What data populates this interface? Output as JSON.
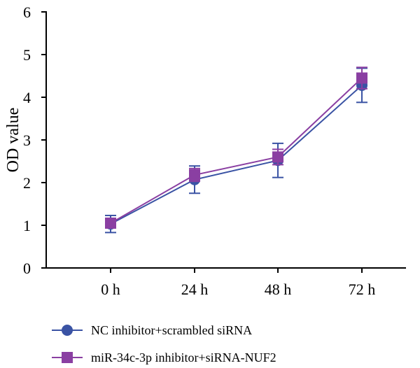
{
  "chart_data": {
    "type": "line",
    "title": "",
    "xlabel": "",
    "ylabel": "OD value",
    "categories": [
      "0 h",
      "24 h",
      "48 h",
      "72 h"
    ],
    "ylim": [
      0,
      6
    ],
    "yticks": [
      0,
      1,
      2,
      3,
      4,
      5,
      6
    ],
    "grid": false,
    "legend_position": "bottom-left",
    "series": [
      {
        "name": "NC inhibitor+scrambled siRNA",
        "values": [
          1.03,
          2.07,
          2.52,
          4.28
        ],
        "errors": [
          0.2,
          0.32,
          0.4,
          0.4
        ],
        "marker": "circle",
        "color": "#3a53a4"
      },
      {
        "name": "miR-34c-3p inhibitor+siRNA-NUF2",
        "values": [
          1.05,
          2.18,
          2.6,
          4.45
        ],
        "errors": [
          0.1,
          0.15,
          0.18,
          0.25
        ],
        "marker": "square",
        "color": "#8a3fa2"
      }
    ]
  }
}
